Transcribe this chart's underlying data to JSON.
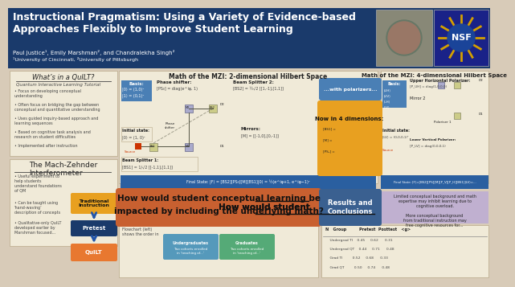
{
  "title_line1": "Instructional Pragmatism: Using a Variety of Evidence-based",
  "title_line2": "Approaches Flexibly to Improve Student Learning",
  "authors": "Paul Justice¹, Emily Marshman², and Chandralekha Singh²",
  "affiliations": "¹University of Cincinnati, ²University of Pittsburgh",
  "header_bg": "#1a3a6b",
  "header_text_color": "#ffffff",
  "body_bg": "#d8cbb8",
  "quilt_title": "What’s in a QuILT?",
  "quilt_subtitle": "Quantum Interactive Learning Tutorial",
  "quilt_bullets": [
    "Focus on developing conceptual\nunderstanding",
    "Often focus on bridging the gap between\nconceptual and quantitative understanding",
    "Uses guided inquiry-based approach and\nlearning sequences",
    "Based on cognitive task analysis and\nresearch on student difficulties",
    "Implemented after instruction"
  ],
  "mzi_title": "The Mach-Zehnder\nInterferometer",
  "mzi_bullets": [
    "Useful experiment to\nhelp students\nunderstand foundations\nof QM",
    "Can be taught using\n‘hand-waving’\ndescription of concepts",
    "Qualitative-only QuILT\ndeveloped earlier by\nMarshman focused..."
  ],
  "math_2d_title": "Math of the MZI: 2-dimensional Hilbert Space",
  "math_4d_title": "Math of the MZI: 4-dimensional Hilbert Space",
  "polarizers_label": "...with polarizers...",
  "now_4d_label": "Now in 4 dimensions:",
  "question_text_line1": "How would student ̲c̲o̲n̲c̲e̲p̲t̲u̲a̲l learning be",
  "question_text_line2": "impacted by ̲i̲n̲c̲l̲u̲d̲i̲n̲g̲ ̲t̲h̲e̲ ̲u̲n̲d̲e̲r̲l̲y̲i̲n̲g̲ ̲m̲a̲t̲h̲?",
  "results_title": "Results and\nConclusions",
  "traditional_label": "Traditional\nInstruction",
  "pretest_label": "Pretest",
  "section_bg": "#f0ead8",
  "panel_border": "#b8a888",
  "polarizers_bg": "#4a7fb5",
  "now_4d_bg": "#e8a020",
  "question_bg": "#c86030",
  "results_bg": "#3a6090",
  "traditional_bg": "#e8a020",
  "pretest_bg": "#1a3a6b",
  "quilt_bot_bg": "#e87830",
  "conclusions_right_bg": "#c0b0d0",
  "basis_bg": "#4a7fb5",
  "final_state_bg": "#2a5fa0",
  "dark_text": "#222222",
  "mid_text": "#444444",
  "light_text": "#666666"
}
